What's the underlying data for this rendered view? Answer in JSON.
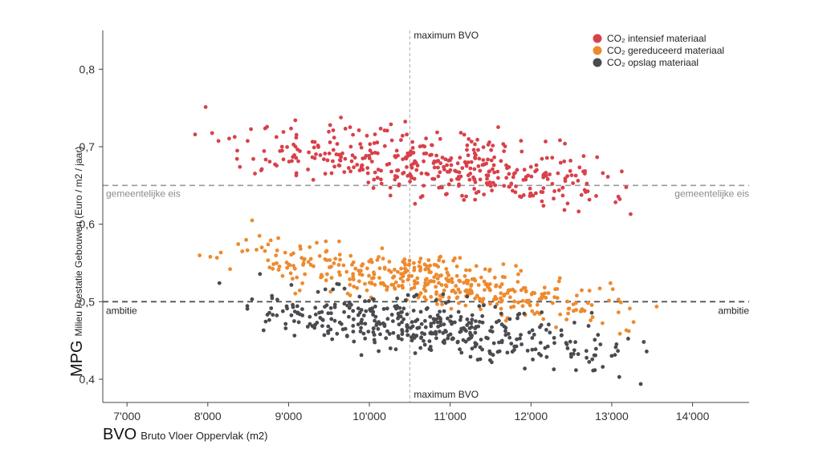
{
  "chart_data": {
    "type": "scatter",
    "title": "",
    "xlabel": {
      "abbr": "BVO",
      "text": "Bruto Vloer Oppervlak (m2)"
    },
    "ylabel": {
      "abbr": "MPG",
      "text": "Milieu Prestatie Gebouwen (Euro / m2 / jaar)"
    },
    "xlim": [
      6700,
      14700
    ],
    "ylim": [
      0.37,
      0.85
    ],
    "x_ticks": [
      {
        "value": 7000,
        "label": "7'000"
      },
      {
        "value": 8000,
        "label": "8'000"
      },
      {
        "value": 9000,
        "label": "9'000"
      },
      {
        "value": 10000,
        "label": "10'000"
      },
      {
        "value": 11000,
        "label": "11'000"
      },
      {
        "value": 12000,
        "label": "12'000"
      },
      {
        "value": 13000,
        "label": "13'000"
      },
      {
        "value": 14000,
        "label": "14'000"
      }
    ],
    "y_ticks": [
      {
        "value": 0.4,
        "label": "0,4"
      },
      {
        "value": 0.5,
        "label": "0,5"
      },
      {
        "value": 0.6,
        "label": "0,6"
      },
      {
        "value": 0.7,
        "label": "0,7"
      },
      {
        "value": 0.8,
        "label": "0,8"
      }
    ],
    "reference_lines": {
      "gemeentelijke": {
        "value": 0.65,
        "label_left": "gemeentelijke eis",
        "label_right": "gemeentelijke eis",
        "color": "#9a9a9a"
      },
      "ambitie": {
        "value": 0.5,
        "label_left": "ambitie",
        "label_right": "ambitie",
        "color": "#555555"
      },
      "maximum_bvo": {
        "value": 10500,
        "label_top": "maximum BVO",
        "label_bottom": "maximum BVO",
        "color": "#aaaaaa"
      }
    },
    "grid": false,
    "legend_position": "top-right",
    "series": [
      {
        "name": "CO₂ intensief materiaal",
        "color": "#d8414a",
        "trend": {
          "x": [
            7600,
            13900
          ],
          "y": [
            0.715,
            0.635
          ]
        },
        "x_range": [
          7600,
          13900
        ],
        "spread": 0.04,
        "count": 420,
        "seed": 11
      },
      {
        "name": "CO₂ gereduceerd materiaal",
        "color": "#ee8a2e",
        "trend": {
          "x": [
            7600,
            13900
          ],
          "y": [
            0.575,
            0.478
          ]
        },
        "x_range": [
          7600,
          13900
        ],
        "spread": 0.03,
        "count": 420,
        "seed": 23
      },
      {
        "name": "CO₂ opslag materiaal",
        "color": "#4a4a4f",
        "trend": {
          "x": [
            7600,
            13900
          ],
          "y": [
            0.51,
            0.425
          ]
        },
        "x_range": [
          7600,
          13900
        ],
        "spread": 0.033,
        "count": 420,
        "seed": 37
      }
    ]
  }
}
